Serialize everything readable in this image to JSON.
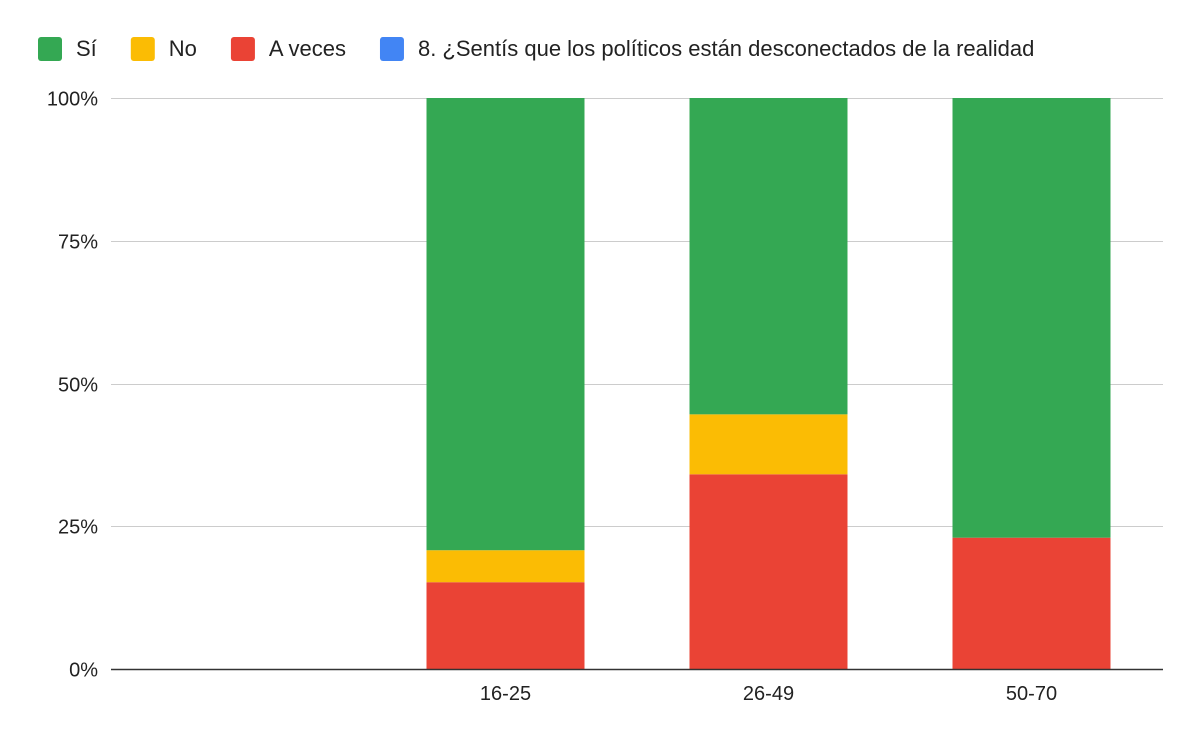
{
  "chart_data": {
    "type": "bar",
    "stacked": true,
    "normalized_percent": true,
    "categories": [
      "",
      "16-25",
      "26-49",
      "50-70"
    ],
    "series": [
      {
        "name": "A veces",
        "color": "#ea4335",
        "values": [
          0,
          15.2,
          34.1,
          23.0
        ]
      },
      {
        "name": "No",
        "color": "#fbbc04",
        "values": [
          0,
          5.6,
          10.5,
          0
        ]
      },
      {
        "name": "Sí",
        "color": "#34a853",
        "values": [
          0,
          79.2,
          55.4,
          77.0
        ]
      },
      {
        "name": "8. ¿Sentís que los políticos están desconectados de la realidad",
        "color": "#4285f4",
        "values": [
          0,
          0,
          0,
          0
        ]
      }
    ],
    "legend_order": [
      "Sí",
      "No",
      "A veces",
      "8. ¿Sentís que los políticos están desconectados de la realidad"
    ],
    "yticks": [
      "0%",
      "25%",
      "50%",
      "75%",
      "100%"
    ],
    "ylim": [
      0,
      100
    ],
    "grid": true,
    "legend_position": "top"
  }
}
